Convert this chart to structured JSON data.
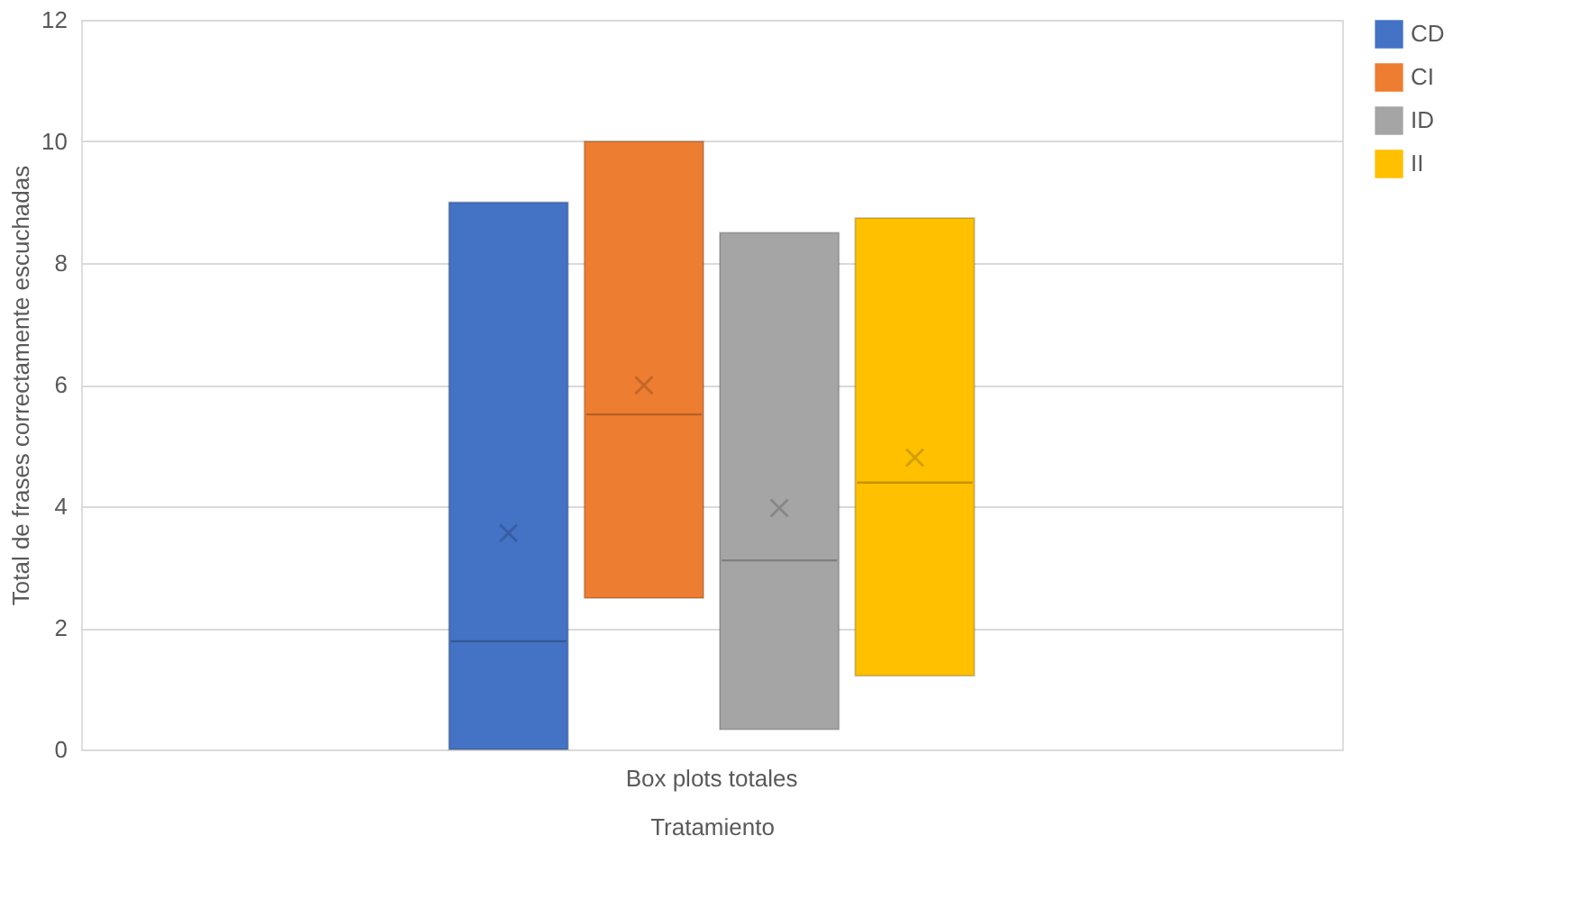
{
  "chart_data": {
    "type": "box",
    "categories": [
      "Box plots totales"
    ],
    "xlabel": "Tratamiento",
    "ylabel": "Total de frases correctamente escuchadas",
    "ylim": [
      0,
      12
    ],
    "yticks": [
      0,
      2,
      4,
      6,
      8,
      10,
      12
    ],
    "grid": "y",
    "legend": "right",
    "series": [
      {
        "name": "CD",
        "color": "#4472c4",
        "boxes": [
          {
            "low": 0,
            "q1": 0,
            "median": 1.78,
            "q3": 9.0,
            "high": 9.0,
            "mean": 3.56
          }
        ]
      },
      {
        "name": "CI",
        "color": "#ed7d31",
        "boxes": [
          {
            "low": 2.49,
            "q1": 2.49,
            "median": 5.51,
            "q3": 10.0,
            "high": 10.0,
            "mean": 5.99
          }
        ]
      },
      {
        "name": "ID",
        "color": "#a5a5a5",
        "boxes": [
          {
            "low": 0.33,
            "q1": 0.33,
            "median": 3.11,
            "q3": 8.5,
            "high": 8.5,
            "mean": 3.97
          }
        ]
      },
      {
        "name": "II",
        "color": "#ffc000",
        "boxes": [
          {
            "low": 1.21,
            "q1": 1.21,
            "median": 4.39,
            "q3": 8.74,
            "high": 8.74,
            "mean": 4.8
          }
        ]
      }
    ]
  }
}
